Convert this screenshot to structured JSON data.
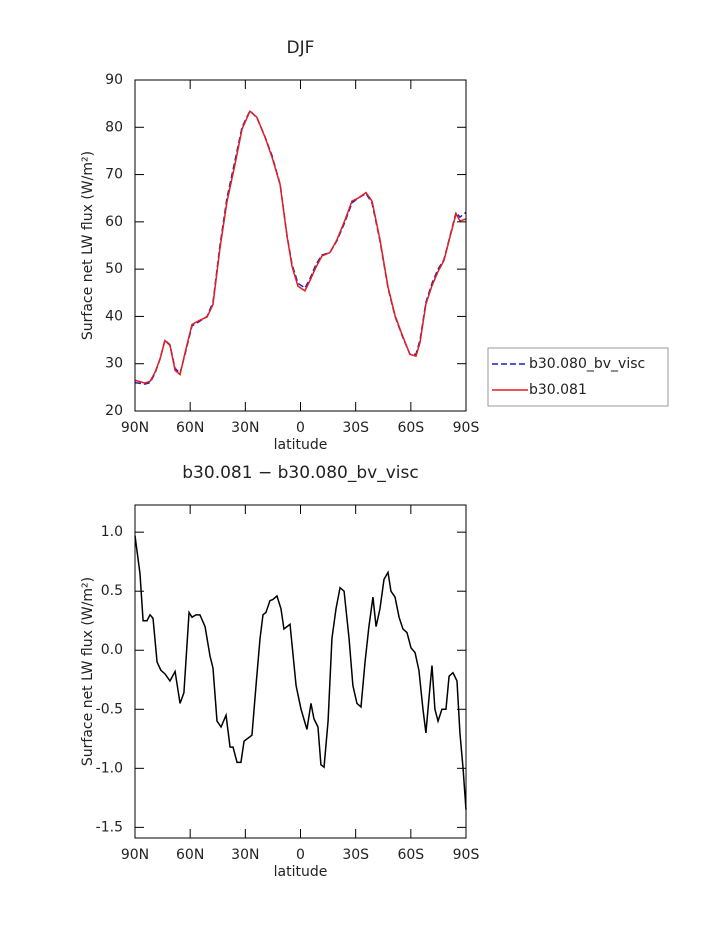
{
  "chart_data": [
    {
      "type": "line",
      "title": "DJF",
      "xlabel": "latitude",
      "ylabel": "Surface net LW flux (W/m²)",
      "x": [
        90,
        84.6,
        81.8,
        79.1,
        76.4,
        73.7,
        71.0,
        68.2,
        65.5,
        62.8,
        59.0,
        54.7,
        50.8,
        47.6,
        43.8,
        40.0,
        35.6,
        31.8,
        27.5,
        23.7,
        19.3,
        15.5,
        11.1,
        7.3,
        4.6,
        1.4,
        -2.4,
        -5.2,
        -8.4,
        -11.7,
        -16.0,
        -19.8,
        -24.2,
        -28.0,
        -31.3,
        -35.6,
        -38.9,
        -43.2,
        -47.6,
        -51.4,
        -55.2,
        -59.5,
        -62.8,
        -65.0,
        -68.2,
        -71.5,
        -74.8,
        -78.0,
        -81.3,
        -84.6,
        -86.7,
        -90
      ],
      "series": [
        {
          "name": "b30.080_bv_visc",
          "color": "#1f1fbf",
          "linestyle": "dashed",
          "values": [
            26,
            25.7,
            26,
            28,
            31,
            35,
            34,
            29,
            28,
            32,
            38,
            39,
            40,
            43,
            55,
            65,
            73,
            80,
            83.5,
            82,
            78,
            74,
            68,
            57,
            51,
            47,
            46,
            48,
            51,
            53,
            53.5,
            56,
            60,
            64,
            65,
            66,
            64,
            56,
            46,
            40,
            36,
            32,
            32,
            35,
            43,
            47,
            50,
            52,
            57,
            62,
            61,
            62
          ]
        },
        {
          "name": "b30.081",
          "color": "#e02020",
          "linestyle": "solid",
          "values": [
            26.5,
            25.9,
            26.3,
            28.2,
            31,
            34.9,
            33.9,
            28.6,
            27.7,
            32.3,
            38.3,
            39.2,
            39.9,
            42.5,
            54.4,
            64.2,
            72.2,
            79.6,
            83.4,
            82.1,
            77.9,
            73.7,
            67.9,
            56.9,
            50.6,
            46.4,
            45.4,
            47.6,
            50.4,
            52.8,
            53.5,
            56.2,
            60.4,
            64.4,
            65.0,
            66.2,
            64.4,
            56.3,
            46.2,
            40.2,
            36.2,
            32,
            31.6,
            34.5,
            42.6,
            46.5,
            49.5,
            51.8,
            56.8,
            61.7,
            60.2,
            60.6
          ]
        }
      ],
      "xlim": [
        90,
        -90
      ],
      "xticks": [
        {
          "value": 90,
          "label": "90N"
        },
        {
          "value": 60,
          "label": "60N"
        },
        {
          "value": 30,
          "label": "30N"
        },
        0,
        {
          "value": -30,
          "label": "30S"
        },
        {
          "value": -60,
          "label": "60S"
        },
        {
          "value": -90,
          "label": "90S"
        }
      ],
      "ylim": [
        20,
        90
      ],
      "yticks": [
        20,
        30,
        40,
        50,
        60,
        70,
        80,
        90
      ],
      "legend": "right"
    },
    {
      "type": "line",
      "title": "b30.081 − b30.080_bv_visc",
      "xlabel": "latitude",
      "ylabel": "Surface net LW flux (W/m²)",
      "x": [
        90,
        87.3,
        85.6,
        83.5,
        81.8,
        80.2,
        78.0,
        75.9,
        73.7,
        71.0,
        68.2,
        65.5,
        63.4,
        60.6,
        59.0,
        56.8,
        54.7,
        51.9,
        49.2,
        47.6,
        45.4,
        43.2,
        40.5,
        38.3,
        36.7,
        34.5,
        32.4,
        30.7,
        26.4,
        24.2,
        22.0,
        20.4,
        18.8,
        16.6,
        15.0,
        12.8,
        10.6,
        9.0,
        5.7,
        2.4,
        -0.3,
        -3.5,
        -5.7,
        -7.3,
        -9.5,
        -11.1,
        -12.8,
        -15.0,
        -17.1,
        -19.3,
        -21.5,
        -23.7,
        -26.4,
        -28.5,
        -30.7,
        -32.9,
        -35.1,
        -37.2,
        -39.4,
        -41.1,
        -43.2,
        -45.4,
        -47.6,
        -49.2,
        -51.4,
        -53.6,
        -55.7,
        -57.9,
        -60.1,
        -62.3,
        -64.4,
        -66.6,
        -68.2,
        -69.9,
        -71.5,
        -73.1,
        -74.8,
        -76.9,
        -79.1,
        -80.8,
        -82.9,
        -85.1,
        -86.7,
        -88.4,
        -90
      ],
      "series": [
        {
          "color": "#000000",
          "linestyle": "solid",
          "values": [
            0.97,
            0.65,
            0.25,
            0.25,
            0.3,
            0.27,
            -0.1,
            -0.17,
            -0.2,
            -0.26,
            -0.18,
            -0.45,
            -0.36,
            0.32,
            0.28,
            0.3,
            0.3,
            0.2,
            -0.05,
            -0.15,
            -0.6,
            -0.65,
            -0.55,
            -0.82,
            -0.82,
            -0.95,
            -0.95,
            -0.77,
            -0.72,
            -0.3,
            0.1,
            0.3,
            0.32,
            0.42,
            0.43,
            0.46,
            0.35,
            0.18,
            0.22,
            -0.3,
            -0.5,
            -0.67,
            -0.45,
            -0.58,
            -0.65,
            -0.97,
            -0.99,
            -0.6,
            0.1,
            0.35,
            0.53,
            0.5,
            0.1,
            -0.3,
            -0.45,
            -0.48,
            -0.1,
            0.2,
            0.45,
            0.2,
            0.35,
            0.6,
            0.66,
            0.5,
            0.45,
            0.28,
            0.18,
            0.15,
            0.02,
            -0.02,
            -0.17,
            -0.5,
            -0.7,
            -0.4,
            -0.13,
            -0.5,
            -0.6,
            -0.5,
            -0.5,
            -0.22,
            -0.19,
            -0.26,
            -0.7,
            -1.0,
            -1.35
          ]
        }
      ],
      "xlim": [
        90,
        -90
      ],
      "xticks": [
        {
          "value": 90,
          "label": "90N"
        },
        {
          "value": 60,
          "label": "60N"
        },
        {
          "value": 30,
          "label": "30N"
        },
        0,
        {
          "value": -30,
          "label": "30S"
        },
        {
          "value": -60,
          "label": "60S"
        },
        {
          "value": -90,
          "label": "90S"
        }
      ],
      "ylim": [
        -1.59,
        1.23
      ],
      "yticks": [
        -1.5,
        {
          "value": -1,
          "label": "-1.0"
        },
        -0.5,
        {
          "value": 0,
          "label": "0.0"
        },
        0.5,
        {
          "value": 1,
          "label": "1.0"
        }
      ]
    }
  ]
}
